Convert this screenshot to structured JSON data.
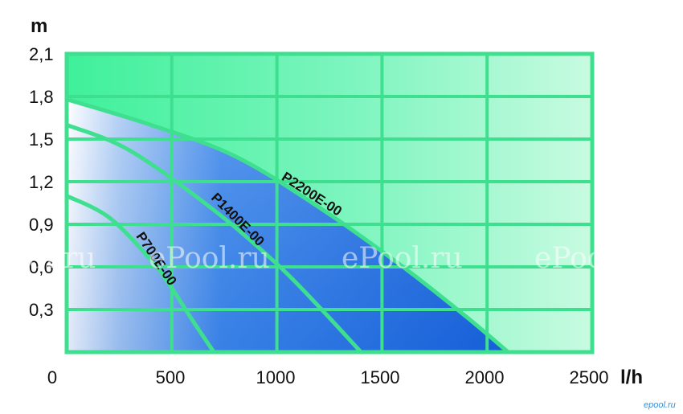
{
  "chart_data": {
    "type": "line",
    "xlabel": "l/h",
    "ylabel": "m",
    "x_ticks": [
      "0",
      "500",
      "1000",
      "1500",
      "2000",
      "2500"
    ],
    "y_ticks": [
      "0,3",
      "0,6",
      "0,9",
      "1,2",
      "1,5",
      "1,8",
      "2,1"
    ],
    "xlim": [
      0,
      2500
    ],
    "ylim": [
      0,
      2.1
    ],
    "grid": true,
    "series": [
      {
        "name": "P700E-00",
        "x": [
          0,
          200,
          400,
          500,
          600,
          700
        ],
        "y": [
          1.1,
          0.95,
          0.65,
          0.45,
          0.22,
          0.0
        ]
      },
      {
        "name": "P1400E-00",
        "x": [
          0,
          300,
          700,
          1000,
          1200,
          1400
        ],
        "y": [
          1.6,
          1.42,
          1.0,
          0.62,
          0.32,
          0.0
        ]
      },
      {
        "name": "P2200E-00",
        "x": [
          0,
          400,
          800,
          1200,
          1600,
          1900,
          2100
        ],
        "y": [
          1.78,
          1.6,
          1.38,
          1.02,
          0.6,
          0.25,
          0.0
        ]
      }
    ],
    "colors": {
      "grid": "#3ee08f",
      "fill_dark": "#1a6fe0",
      "fill_light": "#ffffff"
    }
  },
  "watermark": [
    "Pool.ru",
    "ePool.ru",
    "ePool.ru",
    "ePool.ru"
  ],
  "logo": "epool.ru"
}
